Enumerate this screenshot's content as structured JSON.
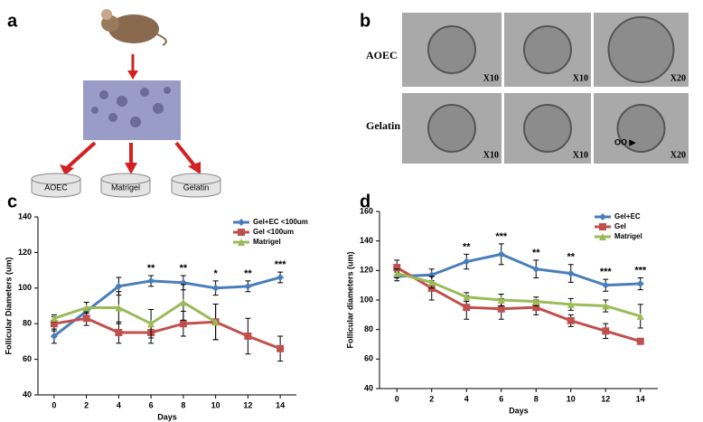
{
  "panels": {
    "a": {
      "label": "a",
      "dishes": [
        "AOEC",
        "Matrigel",
        "Gelatin"
      ]
    },
    "b": {
      "label": "b",
      "rows": [
        "AOEC",
        "Gelatin"
      ],
      "magnifications": [
        [
          "X10",
          "X10",
          "X20"
        ],
        [
          "X10",
          "X10",
          "X20"
        ]
      ],
      "marker": "OO ▶"
    },
    "c": {
      "label": "c"
    },
    "d": {
      "label": "d"
    }
  },
  "chart_data": [
    {
      "type": "line",
      "x_label": "Days",
      "y_label": "Follicular Diameters (um)",
      "x": [
        0,
        2,
        4,
        6,
        8,
        10,
        12,
        14
      ],
      "xlim": [
        -1,
        15
      ],
      "xticks": [
        0,
        2,
        4,
        6,
        8,
        10,
        12,
        14
      ],
      "ylim": [
        40,
        140
      ],
      "yticks": [
        40,
        60,
        80,
        100,
        120,
        140
      ],
      "legend": "upper right",
      "series": [
        {
          "name": "Gel+EC <100um",
          "color": "#4a7ebb",
          "marker": "diamond",
          "values": [
            73,
            87,
            101,
            104,
            103,
            100,
            101,
            106
          ],
          "errors": [
            4,
            5,
            5,
            3,
            4,
            4,
            3,
            3
          ]
        },
        {
          "name": "Gel <100um",
          "color": "#c0504d",
          "marker": "square",
          "values": [
            80,
            83,
            75,
            75,
            80,
            81,
            73,
            66
          ],
          "errors": [
            4,
            4,
            6,
            6,
            7,
            10,
            10,
            7
          ]
        },
        {
          "name": "Matrigel",
          "color": "#9bbb59",
          "marker": "triangle",
          "values": [
            83,
            89,
            89,
            80,
            92,
            81,
            null,
            null
          ],
          "errors": [
            2,
            3,
            9,
            8,
            10,
            10,
            null,
            null
          ]
        }
      ],
      "annotations": [
        {
          "x": 6,
          "text": "**"
        },
        {
          "x": 8,
          "text": "**"
        },
        {
          "x": 10,
          "text": "*"
        },
        {
          "x": 12,
          "text": "**"
        },
        {
          "x": 14,
          "text": "***"
        }
      ]
    },
    {
      "type": "line",
      "x_label": "Days",
      "y_label": "Follicular diameters (um)",
      "x": [
        0,
        2,
        4,
        6,
        8,
        10,
        12,
        14
      ],
      "xlim": [
        -1,
        15
      ],
      "xticks": [
        0,
        2,
        4,
        6,
        8,
        10,
        12,
        14
      ],
      "ylim": [
        40,
        160
      ],
      "yticks": [
        40,
        60,
        80,
        100,
        120,
        140,
        160
      ],
      "legend": "upper right",
      "series": [
        {
          "name": "Gel+EC",
          "color": "#4a7ebb",
          "marker": "diamond",
          "values": [
            116,
            117,
            126,
            131,
            121,
            118,
            110,
            111
          ],
          "errors": [
            3,
            4,
            5,
            7,
            6,
            6,
            4,
            4
          ]
        },
        {
          "name": "Gel",
          "color": "#c0504d",
          "marker": "square",
          "values": [
            122,
            108,
            95,
            94,
            95,
            86,
            79,
            72
          ],
          "errors": [
            5,
            8,
            8,
            7,
            5,
            4,
            5,
            2
          ]
        },
        {
          "name": "Matrigel",
          "color": "#9bbb59",
          "marker": "triangle",
          "values": [
            118,
            112,
            102,
            100,
            99,
            97,
            96,
            89
          ],
          "errors": [
            3,
            4,
            3,
            4,
            3,
            4,
            4,
            8
          ]
        }
      ],
      "annotations": [
        {
          "x": 4,
          "text": "**"
        },
        {
          "x": 6,
          "text": "***"
        },
        {
          "x": 8,
          "text": "**"
        },
        {
          "x": 10,
          "text": "**"
        },
        {
          "x": 12,
          "text": "***"
        },
        {
          "x": 14,
          "text": "***"
        }
      ]
    }
  ]
}
